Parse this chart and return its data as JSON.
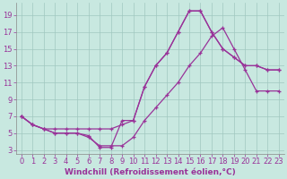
{
  "xlabel": "Windchill (Refroidissement éolien,°C)",
  "bg_color": "#c8e8e0",
  "line_color": "#993399",
  "grid_color": "#a0c8c0",
  "x_ticks": [
    0,
    1,
    2,
    3,
    4,
    5,
    6,
    7,
    8,
    9,
    10,
    11,
    12,
    13,
    14,
    15,
    16,
    17,
    18,
    19,
    20,
    21,
    22,
    23
  ],
  "y_ticks": [
    3,
    5,
    7,
    9,
    11,
    13,
    15,
    17,
    19
  ],
  "xlim": [
    -0.5,
    23.5
  ],
  "ylim": [
    2.5,
    20.5
  ],
  "series1_x": [
    0,
    1,
    2,
    3,
    4,
    5,
    6,
    7,
    8,
    9,
    10,
    11,
    12,
    13,
    14,
    15,
    16,
    17,
    18,
    19,
    20,
    21,
    22,
    23
  ],
  "series1_y": [
    7.0,
    6.0,
    5.5,
    5.5,
    5.5,
    5.5,
    5.5,
    5.5,
    5.5,
    6.0,
    6.5,
    10.5,
    13.0,
    14.5,
    17.0,
    19.5,
    19.5,
    17.0,
    15.0,
    14.0,
    13.0,
    13.0,
    12.5,
    12.5
  ],
  "series2_x": [
    0,
    1,
    2,
    3,
    4,
    5,
    6,
    7,
    8,
    9,
    10,
    11,
    12,
    13,
    14,
    15,
    16,
    17,
    18,
    19,
    20,
    21,
    22,
    23
  ],
  "series2_y": [
    7.0,
    6.0,
    5.5,
    5.0,
    5.0,
    5.0,
    4.5,
    3.5,
    3.5,
    3.5,
    4.5,
    6.5,
    8.0,
    9.5,
    11.0,
    13.0,
    14.5,
    16.5,
    17.5,
    15.0,
    12.5,
    10.0,
    10.0,
    10.0
  ],
  "series3_x": [
    0,
    1,
    2,
    3,
    4,
    5,
    6,
    7,
    8,
    9,
    10,
    11,
    12,
    13,
    14,
    15,
    16,
    17,
    18,
    19,
    20,
    21,
    22,
    23
  ],
  "series3_y": [
    7.0,
    6.0,
    5.5,
    5.0,
    5.0,
    5.0,
    4.7,
    3.3,
    3.3,
    6.5,
    6.5,
    10.5,
    13.0,
    14.5,
    17.0,
    19.5,
    19.5,
    17.0,
    15.0,
    14.0,
    13.0,
    13.0,
    12.5,
    12.5
  ],
  "tick_fontsize": 6,
  "label_fontsize": 6.5
}
